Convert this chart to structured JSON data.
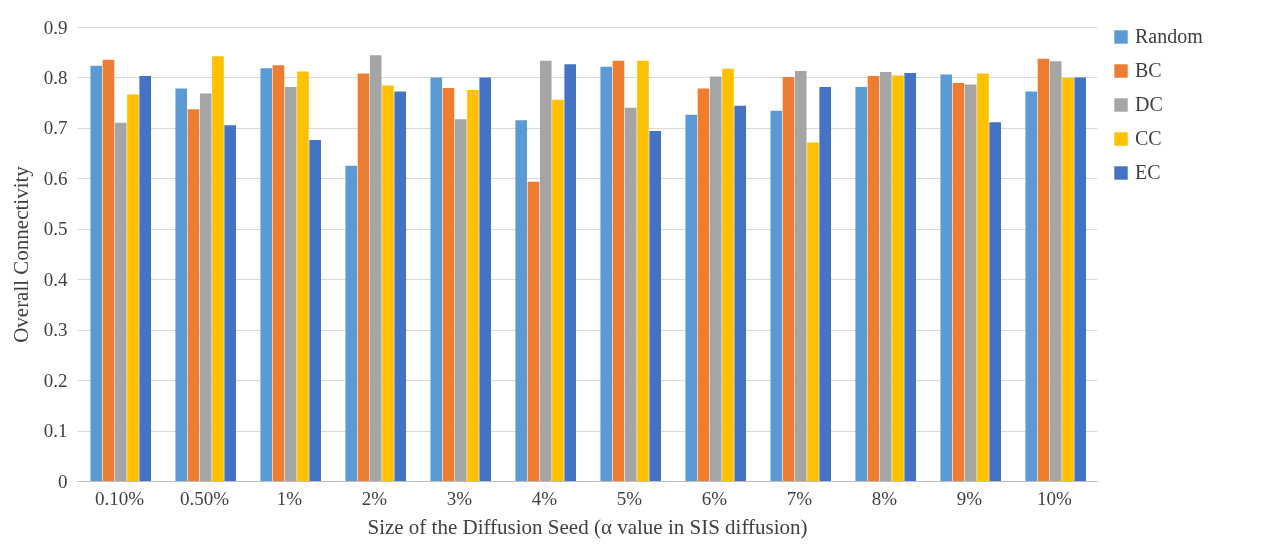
{
  "chart_data": {
    "type": "bar",
    "xlabel": "Size of the Diffusion Seed (α value in SIS diffusion)",
    "ylabel": "Overall Connectivity",
    "categories": [
      "0.10%",
      "0.50%",
      "1%",
      "2%",
      "3%",
      "4%",
      "5%",
      "6%",
      "7%",
      "8%",
      "9%",
      "10%"
    ],
    "series": [
      {
        "name": "Random",
        "color": "#5b9bd5",
        "values": [
          0.823,
          0.778,
          0.818,
          0.625,
          0.8,
          0.715,
          0.821,
          0.726,
          0.734,
          0.781,
          0.806,
          0.772
        ]
      },
      {
        "name": "BC",
        "color": "#ed7d31",
        "values": [
          0.835,
          0.737,
          0.824,
          0.808,
          0.779,
          0.593,
          0.833,
          0.778,
          0.801,
          0.803,
          0.789,
          0.837
        ]
      },
      {
        "name": "DC",
        "color": "#a5a5a5",
        "values": [
          0.71,
          0.768,
          0.781,
          0.844,
          0.717,
          0.833,
          0.74,
          0.802,
          0.813,
          0.811,
          0.786,
          0.832
        ]
      },
      {
        "name": "CC",
        "color": "#ffc000",
        "values": [
          0.766,
          0.842,
          0.812,
          0.784,
          0.775,
          0.756,
          0.833,
          0.817,
          0.671,
          0.804,
          0.808,
          0.799
        ]
      },
      {
        "name": "EC",
        "color": "#4472c4",
        "values": [
          0.803,
          0.705,
          0.676,
          0.772,
          0.8,
          0.826,
          0.694,
          0.744,
          0.781,
          0.809,
          0.711,
          0.8
        ]
      }
    ],
    "ylim": [
      0,
      0.9
    ],
    "yticks": [
      0,
      0.1,
      0.2,
      0.3,
      0.4,
      0.5,
      0.6,
      0.7,
      0.8,
      0.9
    ],
    "grid": "y",
    "legend": "right"
  }
}
